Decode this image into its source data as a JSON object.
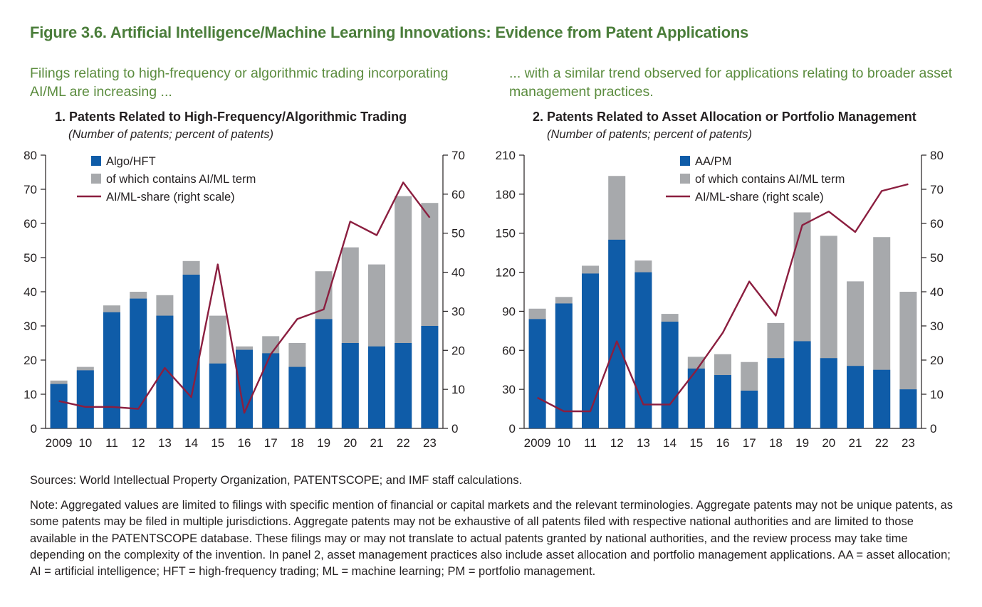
{
  "figure_title": "Figure 3.6. Artificial Intelligence/Machine Learning Innovations: Evidence from Patent Applications",
  "subhead_left": "Filings relating to high-frequency or algorithmic trading incorporating AI/ML are increasing ...",
  "subhead_right": "... with a similar trend observed for applications relating to broader asset management practices.",
  "sources": "Sources: World Intellectual Property Organization, PATENTSCOPE; and IMF staff calculations.",
  "note": "Note: Aggregated values are limited to filings with specific mention of financial or capital markets and the relevant terminologies. Aggregate patents may not be unique patents, as some patents may be filed in multiple jurisdictions. Aggregate patents may not be exhaustive of all patents filed with respective national authorities and are limited to those available in the PATENTSCOPE database. These filings may or may not translate to actual patents granted by national authorities, and the review process may take time depending on the complexity of the invention. In panel 2, asset management practices also include asset allocation and portfolio management applications. AA = asset allocation; AI = artificial intelligence; HFT = high-frequency trading; ML = machine learning; PM = portfolio management.",
  "colors": {
    "total_bar": "#a7a9ac",
    "base_bar": "#0f5ca8",
    "share_line": "#8b1e3f",
    "title_green": "#4a7d3a",
    "text": "#231f20"
  },
  "chart_data": [
    {
      "type": "bar",
      "title": "1. Patents Related to High-Frequency/Algorithmic Trading",
      "subtitle": "(Number of patents; percent of patents)",
      "categories": [
        "2009",
        "10",
        "11",
        "12",
        "13",
        "14",
        "15",
        "16",
        "17",
        "18",
        "19",
        "20",
        "21",
        "22",
        "23"
      ],
      "series": [
        {
          "name": "Algo/HFT",
          "kind": "bar",
          "axis": "left",
          "values": [
            13,
            17,
            34,
            38,
            33,
            45,
            19,
            23,
            22,
            18,
            32,
            25,
            24,
            25,
            30
          ]
        },
        {
          "name": "of which contains AI/ML term",
          "kind": "bar",
          "axis": "left",
          "values": [
            14,
            18,
            36,
            40,
            39,
            49,
            33,
            24,
            27,
            25,
            46,
            53,
            48,
            68,
            66
          ]
        },
        {
          "name": "AI/ML-share (right scale)",
          "kind": "line",
          "axis": "right",
          "values": [
            7,
            5.5,
            5.5,
            5,
            15.5,
            8,
            42,
            4,
            19,
            28,
            30.5,
            53,
            49.5,
            63,
            54
          ]
        }
      ],
      "ylim": [
        0,
        80
      ],
      "yticks": [
        0,
        10,
        20,
        30,
        40,
        50,
        60,
        70,
        80
      ],
      "y2lim": [
        0,
        70
      ],
      "y2ticks": [
        0,
        10,
        20,
        30,
        40,
        50,
        60,
        70
      ],
      "legend_placement": "top-left",
      "grid": false
    },
    {
      "type": "bar",
      "title": "2. Patents Related to Asset Allocation or Portfolio Management",
      "subtitle": "(Number of patents; percent of patents)",
      "categories": [
        "2009",
        "10",
        "11",
        "12",
        "13",
        "14",
        "15",
        "16",
        "17",
        "18",
        "19",
        "20",
        "21",
        "22",
        "23"
      ],
      "series": [
        {
          "name": "AA/PM",
          "kind": "bar",
          "axis": "left",
          "values": [
            84,
            96,
            119,
            145,
            120,
            82,
            46,
            41,
            29,
            54,
            67,
            54,
            48,
            45,
            30
          ]
        },
        {
          "name": "of which contains AI/ML term",
          "kind": "bar",
          "axis": "left",
          "values": [
            92,
            101,
            125,
            194,
            129,
            88,
            55,
            57,
            51,
            81,
            166,
            148,
            113,
            147,
            105
          ]
        },
        {
          "name": "AI/ML-share (right scale)",
          "kind": "line",
          "axis": "right",
          "values": [
            9,
            5,
            5,
            25.5,
            7,
            7,
            17,
            28,
            43,
            33,
            59.5,
            63.5,
            57.5,
            69.5,
            71.5
          ]
        }
      ],
      "ylim": [
        0,
        210
      ],
      "yticks": [
        0,
        30,
        60,
        90,
        120,
        150,
        180,
        210
      ],
      "y2lim": [
        0,
        80
      ],
      "y2ticks": [
        0,
        10,
        20,
        30,
        40,
        50,
        60,
        70,
        80
      ],
      "legend_placement": "top-left",
      "grid": false
    }
  ]
}
